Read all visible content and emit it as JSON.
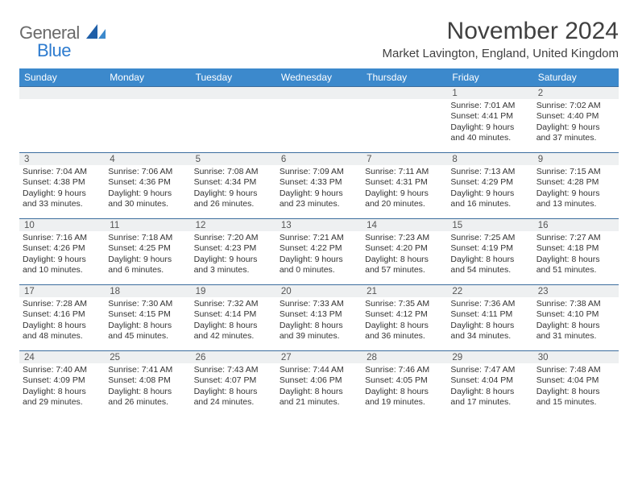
{
  "brand": {
    "general": "General",
    "blue": "Blue"
  },
  "title": "November 2024",
  "location": "Market Lavington, England, United Kingdom",
  "colors": {
    "header_bg": "#3c89cc",
    "header_text": "#ffffff",
    "cell_border": "#3c6d9e",
    "daynum_bg": "#eef0f1",
    "text": "#333333",
    "logo_gray": "#6a6a6a",
    "logo_blue": "#2d7bcf"
  },
  "weekdays": [
    "Sunday",
    "Monday",
    "Tuesday",
    "Wednesday",
    "Thursday",
    "Friday",
    "Saturday"
  ],
  "weeks": [
    [
      {
        "n": ""
      },
      {
        "n": ""
      },
      {
        "n": ""
      },
      {
        "n": ""
      },
      {
        "n": ""
      },
      {
        "n": "1",
        "sr": "Sunrise: 7:01 AM",
        "ss": "Sunset: 4:41 PM",
        "dl1": "Daylight: 9 hours",
        "dl2": "and 40 minutes."
      },
      {
        "n": "2",
        "sr": "Sunrise: 7:02 AM",
        "ss": "Sunset: 4:40 PM",
        "dl1": "Daylight: 9 hours",
        "dl2": "and 37 minutes."
      }
    ],
    [
      {
        "n": "3",
        "sr": "Sunrise: 7:04 AM",
        "ss": "Sunset: 4:38 PM",
        "dl1": "Daylight: 9 hours",
        "dl2": "and 33 minutes."
      },
      {
        "n": "4",
        "sr": "Sunrise: 7:06 AM",
        "ss": "Sunset: 4:36 PM",
        "dl1": "Daylight: 9 hours",
        "dl2": "and 30 minutes."
      },
      {
        "n": "5",
        "sr": "Sunrise: 7:08 AM",
        "ss": "Sunset: 4:34 PM",
        "dl1": "Daylight: 9 hours",
        "dl2": "and 26 minutes."
      },
      {
        "n": "6",
        "sr": "Sunrise: 7:09 AM",
        "ss": "Sunset: 4:33 PM",
        "dl1": "Daylight: 9 hours",
        "dl2": "and 23 minutes."
      },
      {
        "n": "7",
        "sr": "Sunrise: 7:11 AM",
        "ss": "Sunset: 4:31 PM",
        "dl1": "Daylight: 9 hours",
        "dl2": "and 20 minutes."
      },
      {
        "n": "8",
        "sr": "Sunrise: 7:13 AM",
        "ss": "Sunset: 4:29 PM",
        "dl1": "Daylight: 9 hours",
        "dl2": "and 16 minutes."
      },
      {
        "n": "9",
        "sr": "Sunrise: 7:15 AM",
        "ss": "Sunset: 4:28 PM",
        "dl1": "Daylight: 9 hours",
        "dl2": "and 13 minutes."
      }
    ],
    [
      {
        "n": "10",
        "sr": "Sunrise: 7:16 AM",
        "ss": "Sunset: 4:26 PM",
        "dl1": "Daylight: 9 hours",
        "dl2": "and 10 minutes."
      },
      {
        "n": "11",
        "sr": "Sunrise: 7:18 AM",
        "ss": "Sunset: 4:25 PM",
        "dl1": "Daylight: 9 hours",
        "dl2": "and 6 minutes."
      },
      {
        "n": "12",
        "sr": "Sunrise: 7:20 AM",
        "ss": "Sunset: 4:23 PM",
        "dl1": "Daylight: 9 hours",
        "dl2": "and 3 minutes."
      },
      {
        "n": "13",
        "sr": "Sunrise: 7:21 AM",
        "ss": "Sunset: 4:22 PM",
        "dl1": "Daylight: 9 hours",
        "dl2": "and 0 minutes."
      },
      {
        "n": "14",
        "sr": "Sunrise: 7:23 AM",
        "ss": "Sunset: 4:20 PM",
        "dl1": "Daylight: 8 hours",
        "dl2": "and 57 minutes."
      },
      {
        "n": "15",
        "sr": "Sunrise: 7:25 AM",
        "ss": "Sunset: 4:19 PM",
        "dl1": "Daylight: 8 hours",
        "dl2": "and 54 minutes."
      },
      {
        "n": "16",
        "sr": "Sunrise: 7:27 AM",
        "ss": "Sunset: 4:18 PM",
        "dl1": "Daylight: 8 hours",
        "dl2": "and 51 minutes."
      }
    ],
    [
      {
        "n": "17",
        "sr": "Sunrise: 7:28 AM",
        "ss": "Sunset: 4:16 PM",
        "dl1": "Daylight: 8 hours",
        "dl2": "and 48 minutes."
      },
      {
        "n": "18",
        "sr": "Sunrise: 7:30 AM",
        "ss": "Sunset: 4:15 PM",
        "dl1": "Daylight: 8 hours",
        "dl2": "and 45 minutes."
      },
      {
        "n": "19",
        "sr": "Sunrise: 7:32 AM",
        "ss": "Sunset: 4:14 PM",
        "dl1": "Daylight: 8 hours",
        "dl2": "and 42 minutes."
      },
      {
        "n": "20",
        "sr": "Sunrise: 7:33 AM",
        "ss": "Sunset: 4:13 PM",
        "dl1": "Daylight: 8 hours",
        "dl2": "and 39 minutes."
      },
      {
        "n": "21",
        "sr": "Sunrise: 7:35 AM",
        "ss": "Sunset: 4:12 PM",
        "dl1": "Daylight: 8 hours",
        "dl2": "and 36 minutes."
      },
      {
        "n": "22",
        "sr": "Sunrise: 7:36 AM",
        "ss": "Sunset: 4:11 PM",
        "dl1": "Daylight: 8 hours",
        "dl2": "and 34 minutes."
      },
      {
        "n": "23",
        "sr": "Sunrise: 7:38 AM",
        "ss": "Sunset: 4:10 PM",
        "dl1": "Daylight: 8 hours",
        "dl2": "and 31 minutes."
      }
    ],
    [
      {
        "n": "24",
        "sr": "Sunrise: 7:40 AM",
        "ss": "Sunset: 4:09 PM",
        "dl1": "Daylight: 8 hours",
        "dl2": "and 29 minutes."
      },
      {
        "n": "25",
        "sr": "Sunrise: 7:41 AM",
        "ss": "Sunset: 4:08 PM",
        "dl1": "Daylight: 8 hours",
        "dl2": "and 26 minutes."
      },
      {
        "n": "26",
        "sr": "Sunrise: 7:43 AM",
        "ss": "Sunset: 4:07 PM",
        "dl1": "Daylight: 8 hours",
        "dl2": "and 24 minutes."
      },
      {
        "n": "27",
        "sr": "Sunrise: 7:44 AM",
        "ss": "Sunset: 4:06 PM",
        "dl1": "Daylight: 8 hours",
        "dl2": "and 21 minutes."
      },
      {
        "n": "28",
        "sr": "Sunrise: 7:46 AM",
        "ss": "Sunset: 4:05 PM",
        "dl1": "Daylight: 8 hours",
        "dl2": "and 19 minutes."
      },
      {
        "n": "29",
        "sr": "Sunrise: 7:47 AM",
        "ss": "Sunset: 4:04 PM",
        "dl1": "Daylight: 8 hours",
        "dl2": "and 17 minutes."
      },
      {
        "n": "30",
        "sr": "Sunrise: 7:48 AM",
        "ss": "Sunset: 4:04 PM",
        "dl1": "Daylight: 8 hours",
        "dl2": "and 15 minutes."
      }
    ]
  ]
}
